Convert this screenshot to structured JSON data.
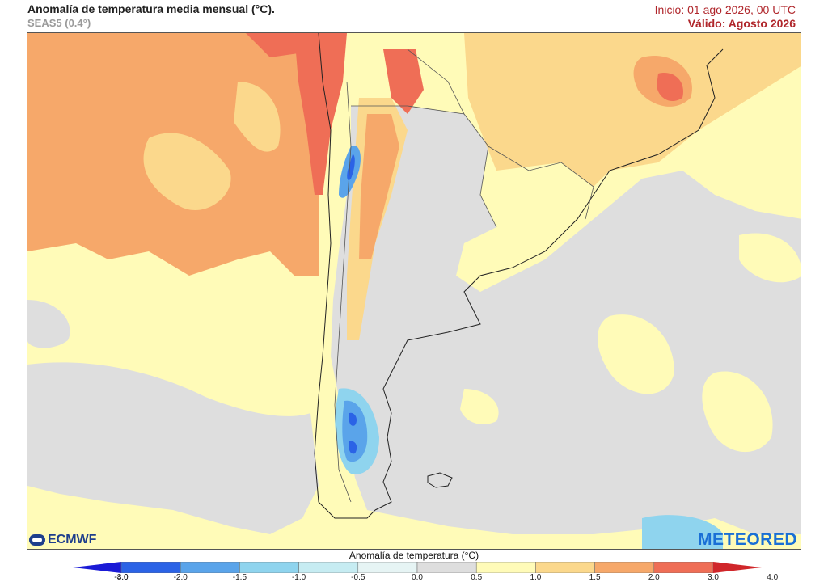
{
  "header": {
    "title": "Anomalía de temperatura media mensual (°C).",
    "subtitle": "SEAS5 (0.4°)",
    "init": "Inicio: 01 ago 2026, 00 UTC",
    "valid": "Válido: Agosto 2026"
  },
  "logos": {
    "left": "ECMWF",
    "right": "METEORED"
  },
  "legend": {
    "title": "Anomalía de temperatura (°C)",
    "levels": [
      "-4.0",
      "-3.0",
      "-2.0",
      "-1.5",
      "-1.0",
      "-0.5",
      "0.0",
      "0.5",
      "1.0",
      "1.5",
      "2.0",
      "3.0",
      "4.0"
    ],
    "colors": [
      "#1a1ad6",
      "#2b63e6",
      "#5aa4ea",
      "#8fd4ee",
      "#c6ecf2",
      "#e6f4f4",
      "#dedede",
      "#fffbb8",
      "#fbd88c",
      "#f6a86a",
      "#ef6e56",
      "#d0262a"
    ]
  },
  "map_colors": {
    "neutral": "#dedede",
    "light_yellow": "#fffbb8",
    "orange_light": "#fbd88c",
    "orange": "#f6a86a",
    "red_orange": "#ef6e56",
    "red": "#d0262a",
    "blue_light": "#8fd4ee",
    "blue": "#5aa4ea",
    "blue_dark": "#2b63e6"
  }
}
